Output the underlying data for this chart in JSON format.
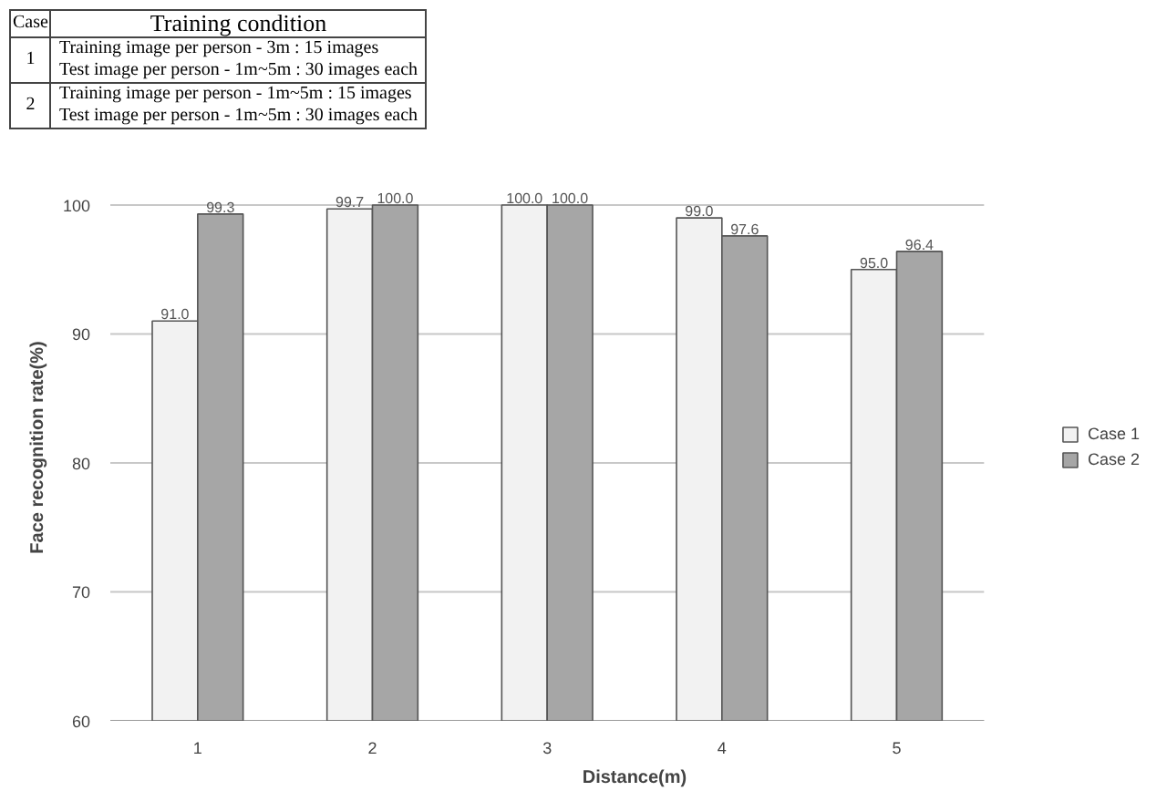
{
  "chart_data": {
    "type": "bar",
    "xlabel": "Distance(m)",
    "ylabel": "Face recognition rate(%)",
    "categories": [
      "1",
      "2",
      "3",
      "4",
      "5"
    ],
    "series": [
      {
        "name": "Case 1",
        "color": "#f2f2f2",
        "values": [
          91.0,
          99.7,
          100.0,
          99.0,
          95.0
        ],
        "value_labels": [
          "91.0",
          "99.7",
          "100.0",
          "99.0",
          "95.0"
        ]
      },
      {
        "name": "Case 2",
        "color": "#a6a6a6",
        "values": [
          99.3,
          100.0,
          100.0,
          97.6,
          96.4
        ],
        "value_labels": [
          "99.3",
          "100.0",
          "100.0",
          "97.6",
          "96.4"
        ]
      }
    ],
    "ylim": [
      60,
      100
    ],
    "yticks": [
      60,
      70,
      80,
      90,
      100
    ],
    "grid": "y",
    "legend": "right",
    "annotations": [
      "Case",
      "Training condition",
      "1",
      "Training image per person - 3m : 15 images",
      "Test image per person - 1m~5m : 30 images each",
      "2",
      "Training image per person - 1m~5m : 15 images",
      "Test image per person - 1m~5m : 30 images each"
    ]
  }
}
